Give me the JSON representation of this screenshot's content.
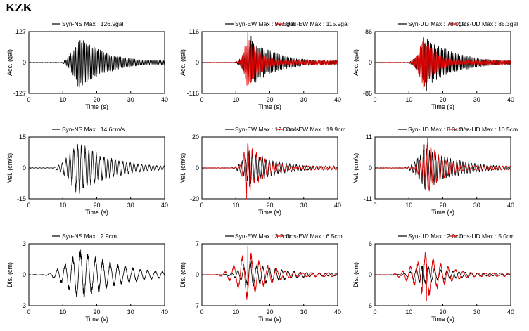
{
  "title": "KZK",
  "colors": {
    "syn": "#000000",
    "obs": "#e00000"
  },
  "chart_data": [
    {
      "type": "line",
      "xlabel": "Time (s)",
      "ylabel": "Acc. (gal)",
      "xlim": [
        0,
        40
      ],
      "ylim": [
        -127,
        127
      ],
      "xticks": [
        0,
        10,
        20,
        30,
        40
      ],
      "yticks": [
        127,
        0,
        -127
      ],
      "series": [
        {
          "name": "Syn-NS  Max : 126.9gal",
          "color": "#000000",
          "onset": 9,
          "peak_time": 14.8,
          "peak": 126.9,
          "decay": 8,
          "freq": 2.2
        }
      ]
    },
    {
      "type": "line",
      "xlabel": "Time (s)",
      "ylabel": "Acc. (gal)",
      "xlim": [
        0,
        40
      ],
      "ylim": [
        -116,
        116
      ],
      "xticks": [
        0,
        10,
        20,
        30,
        40
      ],
      "yticks": [
        116,
        0,
        -116
      ],
      "series": [
        {
          "name": "Syn-EW  Max : 99.5gal",
          "color": "#000000",
          "onset": 9,
          "peak_time": 14.5,
          "peak": 99.5,
          "decay": 8,
          "freq": 2.2
        },
        {
          "name": "Obs-EW  Max : 115.9gal",
          "color": "#e00000",
          "onset": 10,
          "peak_time": 13.5,
          "peak": 115.9,
          "decay": 4,
          "freq": 2.6
        }
      ]
    },
    {
      "type": "line",
      "xlabel": "Time (s)",
      "ylabel": "Acc. (gal)",
      "xlim": [
        0,
        40
      ],
      "ylim": [
        -86,
        86
      ],
      "xticks": [
        0,
        10,
        20,
        30,
        40
      ],
      "yticks": [
        86,
        0,
        -86
      ],
      "series": [
        {
          "name": "Syn-UD  Max : 78.0gal",
          "color": "#000000",
          "onset": 9,
          "peak_time": 15.2,
          "peak": 78.0,
          "decay": 9,
          "freq": 2.4
        },
        {
          "name": "Obs-UD  Max : 85.3gal",
          "color": "#e00000",
          "onset": 10,
          "peak_time": 14.2,
          "peak": 85.3,
          "decay": 4,
          "freq": 2.8
        }
      ]
    },
    {
      "type": "line",
      "xlabel": "Time (s)",
      "ylabel": "Vel. (cm/s)",
      "xlim": [
        0,
        40
      ],
      "ylim": [
        -15,
        15
      ],
      "xticks": [
        0,
        10,
        20,
        30,
        40
      ],
      "yticks": [
        15,
        0,
        -15
      ],
      "series": [
        {
          "name": "Syn-NS  Max : 14.6cm/s",
          "color": "#000000",
          "onset": 6,
          "peak_time": 14.2,
          "peak": 14.6,
          "decay": 10,
          "freq": 0.9
        }
      ]
    },
    {
      "type": "line",
      "xlabel": "Time (s)",
      "ylabel": "Vel. (cm/s)",
      "xlim": [
        0,
        40
      ],
      "ylim": [
        -20,
        20
      ],
      "xticks": [
        0,
        10,
        20,
        30,
        40
      ],
      "yticks": [
        20,
        0,
        -20
      ],
      "series": [
        {
          "name": "Syn-EW  Max : 12.0cm/s",
          "color": "#000000",
          "onset": 8,
          "peak_time": 14.0,
          "peak": 12.0,
          "decay": 9,
          "freq": 1.0
        },
        {
          "name": "Obs-EW  Max : 19.9cm",
          "color": "#e00000",
          "onset": 10,
          "peak_time": 13.2,
          "peak": 19.9,
          "decay": 5,
          "freq": 0.8
        }
      ]
    },
    {
      "type": "line",
      "xlabel": "Time (s)",
      "ylabel": "Vel. (cm/s)",
      "xlim": [
        0,
        40
      ],
      "ylim": [
        -11,
        11
      ],
      "xticks": [
        0,
        10,
        20,
        30,
        40
      ],
      "yticks": [
        11,
        0,
        -11
      ],
      "series": [
        {
          "name": "Syn-UD  Max : 8.3cm/s",
          "color": "#000000",
          "onset": 8,
          "peak_time": 14.5,
          "peak": 8.3,
          "decay": 10,
          "freq": 1.1
        },
        {
          "name": "Obs-UD  Max : 10.5cm",
          "color": "#e00000",
          "onset": 10,
          "peak_time": 15.5,
          "peak": 10.5,
          "decay": 5,
          "freq": 0.9
        }
      ]
    },
    {
      "type": "line",
      "xlabel": "Time (s)",
      "ylabel": "Dis. (cm)",
      "xlim": [
        0,
        40
      ],
      "ylim": [
        -3,
        3
      ],
      "xticks": [
        0,
        10,
        20,
        30,
        40
      ],
      "yticks": [
        3,
        0,
        -3
      ],
      "series": [
        {
          "name": "Syn-NS  Max : 2.9cm",
          "color": "#000000",
          "onset": 3,
          "peak_time": 14.8,
          "peak": 2.9,
          "decay": 12,
          "freq": 0.45
        }
      ]
    },
    {
      "type": "line",
      "xlabel": "Time (s)",
      "ylabel": "Dis. (cm)",
      "xlim": [
        0,
        40
      ],
      "ylim": [
        -7,
        7
      ],
      "xticks": [
        0,
        10,
        20,
        30,
        40
      ],
      "yticks": [
        7,
        0,
        -7
      ],
      "series": [
        {
          "name": "Syn-EW  Max : 3.2cm",
          "color": "#000000",
          "onset": 5,
          "peak_time": 14.5,
          "peak": 3.2,
          "decay": 10,
          "freq": 0.55
        },
        {
          "name": "Obs-EW  Max : 6.5cm",
          "color": "#e00000",
          "onset": 3,
          "peak_time": 13.5,
          "peak": 6.5,
          "decay": 6,
          "freq": 0.4
        }
      ]
    },
    {
      "type": "line",
      "xlabel": "Time (s)",
      "ylabel": "Dis. (cm)",
      "xlim": [
        0,
        40
      ],
      "ylim": [
        -6,
        6
      ],
      "xticks": [
        0,
        10,
        20,
        30,
        40
      ],
      "yticks": [
        6,
        0,
        -6
      ],
      "series": [
        {
          "name": "Syn-UD  Max : 2.0cm",
          "color": "#000000",
          "onset": 5,
          "peak_time": 14.0,
          "peak": 2.0,
          "decay": 10,
          "freq": 0.55
        },
        {
          "name": "Obs-UD  Max : 5.0cm",
          "color": "#e00000",
          "onset": 3,
          "peak_time": 15.2,
          "peak": 5.0,
          "decay": 6,
          "freq": 0.45
        }
      ]
    }
  ]
}
